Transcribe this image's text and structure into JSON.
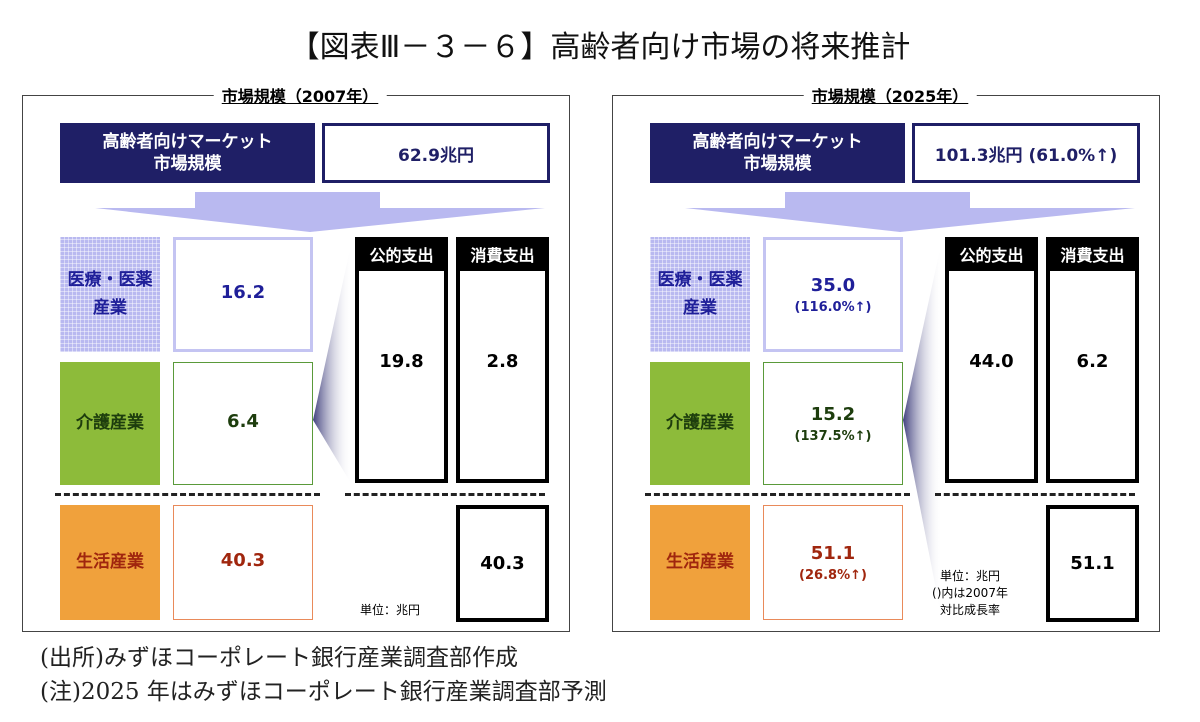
{
  "title": "【図表Ⅲ－３－６】高齢者向け市場の将来推計",
  "panels": [
    {
      "heading": "市場規模（2007年）",
      "market_label_1": "高齢者向けマーケット",
      "market_label_2": "市場規模",
      "market_value": "62.9兆円",
      "rows": [
        {
          "label_1": "医療・医薬",
          "label_2": "産業",
          "value": "16.2",
          "growth": ""
        },
        {
          "label_1": "介護産業",
          "label_2": "",
          "value": "6.4",
          "growth": ""
        },
        {
          "label_1": "生活産業",
          "label_2": "",
          "value": "40.3",
          "growth": ""
        }
      ],
      "public_label": "公的支出",
      "public_value": "19.8",
      "consumer_label": "消費支出",
      "consumer_value": "2.8",
      "living_value": "40.3",
      "unit_note": "単位：兆円",
      "note_2": "",
      "note_3": ""
    },
    {
      "heading": "市場規模（2025年）",
      "market_label_1": "高齢者向けマーケット",
      "market_label_2": "市場規模",
      "market_value": "101.3兆円 (61.0%↑)",
      "rows": [
        {
          "label_1": "医療・医薬",
          "label_2": "産業",
          "value": "35.0",
          "growth": "(116.0%↑)"
        },
        {
          "label_1": "介護産業",
          "label_2": "",
          "value": "15.2",
          "growth": "(137.5%↑)"
        },
        {
          "label_1": "生活産業",
          "label_2": "",
          "value": "51.1",
          "growth": "(26.8%↑)"
        }
      ],
      "public_label": "公的支出",
      "public_value": "44.0",
      "consumer_label": "消費支出",
      "consumer_value": "6.2",
      "living_value": "51.1",
      "unit_note": "単位：兆円",
      "note_2": "()内は2007年",
      "note_3": "対比成長率"
    }
  ],
  "footer": {
    "source": "(出所)みずほコーポレート銀行産業調査部作成",
    "note": "(注)2025 年はみずほコーポレート銀行産業調査部予測"
  },
  "colors": {
    "navy": "#1f1f66",
    "lavender": "#b9b9f0",
    "green": "#8dbb3a",
    "orange": "#f0a13c",
    "red": "#a0260e"
  }
}
